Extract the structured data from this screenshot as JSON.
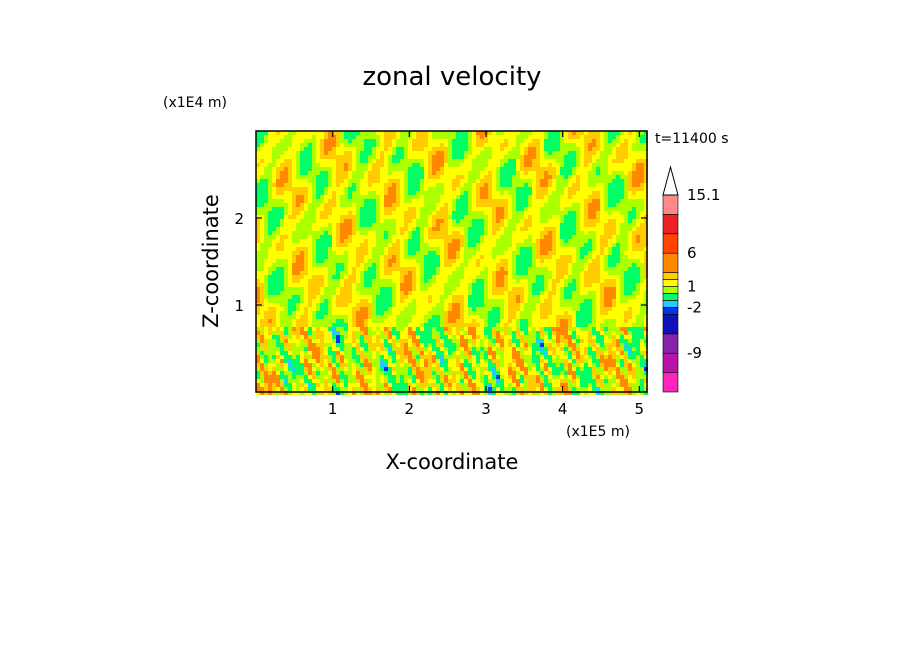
{
  "chart_data": {
    "type": "heatmap",
    "title": "zonal velocity",
    "xlabel": "X-coordinate",
    "ylabel": "Z-coordinate",
    "x_unit": "(x1E5 m)",
    "y_unit": "(x1E4 m)",
    "time_label": "t=11400 s",
    "xlim": [
      0,
      5.1
    ],
    "ylim": [
      0,
      3.0
    ],
    "x_ticks": [
      1,
      2,
      3,
      4,
      5
    ],
    "y_ticks": [
      1,
      2
    ],
    "colorbar": {
      "levels": [
        -15.1,
        -12,
        -9,
        -6,
        -3,
        -2,
        -1,
        0,
        1,
        2,
        3,
        6,
        9,
        12,
        15.1
      ],
      "colors": [
        "#ff22bb",
        "#bb11aa",
        "#8822aa",
        "#1111bb",
        "#0033ee",
        "#22ccff",
        "#00ff66",
        "#aaff00",
        "#ffff00",
        "#ffcc00",
        "#ff8800",
        "#ff4400",
        "#ee2222",
        "#ff8888",
        "#ffbbbb"
      ],
      "tick_labels": [
        "15.1",
        "6",
        "1",
        "-2",
        "-9"
      ],
      "extend_top": true
    }
  }
}
